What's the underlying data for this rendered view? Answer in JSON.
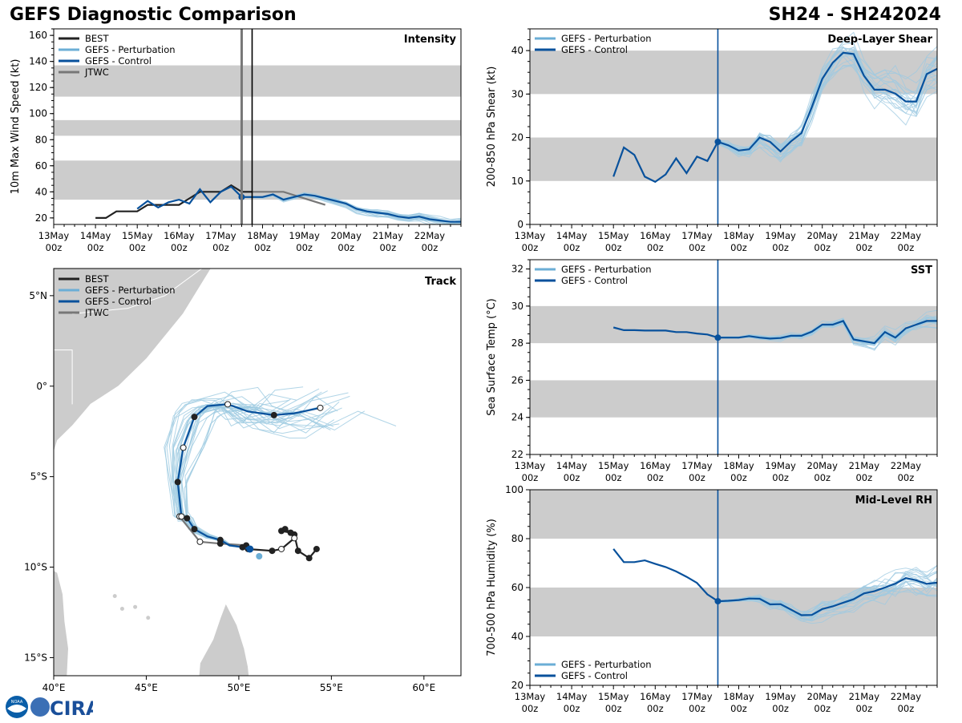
{
  "header": {
    "title": "GEFS Diagnostic Comparison",
    "storm_id": "SH24 - SH242024"
  },
  "logo": {
    "text": "CIRA",
    "seal_text": "NOAA"
  },
  "colors": {
    "best": "#222222",
    "perturbation": "#9ecae1",
    "perturbation_legend": "#6baed6",
    "control": "#08519c",
    "jtwc": "#777777",
    "band": "#cccccc",
    "land": "#cccccc"
  },
  "time_axis": {
    "ticks": [
      "13May\n00z",
      "14May\n00z",
      "15May\n00z",
      "16May\n00z",
      "17May\n00z",
      "18May\n00z",
      "19May\n00z",
      "20May\n00z",
      "21May\n00z",
      "22May\n00z"
    ],
    "range_days": [
      0,
      9.75
    ],
    "init_day": 4.5
  },
  "legends": {
    "best": "BEST",
    "perturbation": "GEFS - Perturbation",
    "control": "GEFS - Control",
    "jtwc": "JTWC"
  },
  "chart_data": [
    {
      "id": "intensity",
      "type": "line",
      "title": "Intensity",
      "ylabel": "10m Max Wind Speed (kt)",
      "ylim": [
        15,
        165
      ],
      "yticks": [
        20,
        40,
        60,
        80,
        100,
        120,
        140,
        160
      ],
      "bands": [
        [
          34,
          64
        ],
        [
          83,
          95
        ],
        [
          113,
          137
        ]
      ],
      "init_lines": [
        4.5,
        4.75
      ],
      "series": [
        {
          "name": "BEST",
          "color": "best",
          "x": [
            1,
            1.25,
            1.5,
            1.75,
            2,
            2.25,
            2.5,
            2.75,
            3,
            3.25,
            3.5,
            3.75,
            4,
            4.25,
            4.5,
            4.75
          ],
          "y": [
            20,
            20,
            25,
            25,
            25,
            30,
            30,
            30,
            30,
            35,
            40,
            40,
            40,
            45,
            40,
            40
          ]
        },
        {
          "name": "GEFS - Control",
          "color": "control",
          "x": [
            2,
            2.25,
            2.5,
            2.75,
            3,
            3.25,
            3.5,
            3.75,
            4,
            4.25,
            4.5,
            4.75,
            5,
            5.25,
            5.5,
            5.75,
            6,
            6.25,
            6.5,
            6.75,
            7,
            7.25,
            7.5,
            7.75,
            8,
            8.25,
            8.5,
            8.75,
            9,
            9.25,
            9.5,
            9.75
          ],
          "y": [
            27,
            33,
            28,
            32,
            34,
            31,
            42,
            32,
            40,
            44,
            36,
            36,
            36,
            38,
            34,
            36,
            38,
            37,
            35,
            33,
            31,
            27,
            25,
            24,
            23,
            21,
            20,
            21,
            19,
            18,
            17,
            17
          ]
        },
        {
          "name": "JTWC",
          "color": "jtwc",
          "x": [
            4.5,
            5,
            5.5,
            6,
            6.5
          ],
          "y": [
            40,
            40,
            40,
            35,
            30
          ]
        }
      ],
      "ensemble": {
        "count": 20,
        "start": 4.5,
        "end": 9.75,
        "start_value": 38,
        "end_value": 17,
        "spread": 6
      }
    },
    {
      "id": "shear",
      "type": "line",
      "title": "Deep-Layer Shear",
      "ylabel": "200-850 hPa Shear (kt)",
      "ylim": [
        0,
        45
      ],
      "yticks": [
        0,
        10,
        20,
        30,
        40
      ],
      "bands": [
        [
          10,
          20
        ],
        [
          30,
          40
        ]
      ],
      "init_lines": [
        4.5
      ],
      "series": [
        {
          "name": "GEFS - Control",
          "color": "control",
          "x": [
            2,
            2.25,
            2.5,
            2.75,
            3,
            3.25,
            3.5,
            3.75,
            4,
            4.25,
            4.5,
            4.75,
            5,
            5.25,
            5.5,
            5.75,
            6,
            6.25,
            6.5,
            6.75,
            7,
            7.25,
            7.5,
            7.75,
            8,
            8.25,
            8.5,
            8.75,
            9,
            9.25,
            9.5,
            9.75
          ],
          "y": [
            11,
            17.7,
            16,
            11,
            9.8,
            11.5,
            15.2,
            11.8,
            15.6,
            14.6,
            19,
            18.2,
            17,
            17.3,
            20,
            19,
            16.8,
            19.1,
            21,
            27,
            33.5,
            37.2,
            39.5,
            39.2,
            34.2,
            31,
            31,
            30.1,
            28.3,
            28.3,
            34.6,
            35.8
          ]
        }
      ],
      "ensemble": {
        "count": 20,
        "start": 4.5,
        "end": 9.75,
        "start_value": 19,
        "end_value": 28,
        "spread": 9
      }
    },
    {
      "id": "sst",
      "type": "line",
      "title": "SST",
      "ylabel": "Sea Surface Temp (°C)",
      "ylim": [
        22,
        32.5
      ],
      "yticks": [
        22,
        24,
        26,
        28,
        30,
        32
      ],
      "bands": [
        [
          24,
          26
        ],
        [
          28,
          30
        ]
      ],
      "init_lines": [
        4.5
      ],
      "series": [
        {
          "name": "GEFS - Control",
          "color": "control",
          "x": [
            2,
            2.25,
            2.5,
            2.75,
            3,
            3.25,
            3.5,
            3.75,
            4,
            4.25,
            4.5,
            4.75,
            5,
            5.25,
            5.5,
            5.75,
            6,
            6.25,
            6.5,
            6.75,
            7,
            7.25,
            7.5,
            7.75,
            8,
            8.25,
            8.5,
            8.75,
            9,
            9.25,
            9.5,
            9.75
          ],
          "y": [
            28.85,
            28.7,
            28.7,
            28.68,
            28.68,
            28.68,
            28.6,
            28.6,
            28.52,
            28.47,
            28.3,
            28.3,
            28.3,
            28.38,
            28.3,
            28.25,
            28.28,
            28.4,
            28.4,
            28.62,
            29.0,
            29.0,
            29.2,
            28.2,
            28.1,
            28.0,
            28.6,
            28.3,
            28.8,
            29.0,
            29.2,
            29.2
          ]
        }
      ],
      "ensemble": {
        "count": 20,
        "start": 4.5,
        "end": 9.75,
        "start_value": 28.3,
        "end_value": 29.0,
        "spread": 0.6
      }
    },
    {
      "id": "rh",
      "type": "line",
      "title": "Mid-Level RH",
      "ylabel": "700-500 hPa Humidity (%)",
      "ylim": [
        20,
        100
      ],
      "yticks": [
        20,
        40,
        60,
        80,
        100
      ],
      "bands": [
        [
          40,
          60
        ],
        [
          80,
          100
        ]
      ],
      "init_lines": [
        4.5
      ],
      "series": [
        {
          "name": "GEFS - Control",
          "color": "control",
          "x": [
            2,
            2.25,
            2.5,
            2.75,
            3,
            3.25,
            3.5,
            3.75,
            4,
            4.25,
            4.5,
            4.75,
            5,
            5.25,
            5.5,
            5.75,
            6,
            6.25,
            6.5,
            6.75,
            7,
            7.25,
            7.5,
            7.75,
            8,
            8.25,
            8.5,
            8.75,
            9,
            9.25,
            9.5,
            9.75
          ],
          "y": [
            75.8,
            70.4,
            70.4,
            71.1,
            69.7,
            68.4,
            66.6,
            64.4,
            61.9,
            57.2,
            54.4,
            54.6,
            54.9,
            55.5,
            55.4,
            53.1,
            53.2,
            51,
            48.7,
            48.8,
            51.2,
            52.3,
            53.8,
            55.2,
            57.6,
            58.5,
            60,
            61.6,
            63.9,
            63,
            61.5,
            62
          ]
        }
      ],
      "ensemble": {
        "count": 20,
        "start": 4.5,
        "end": 9.75,
        "start_value": 54,
        "end_value": 60,
        "spread": 9
      }
    },
    {
      "id": "track",
      "type": "scatter",
      "title": "Track",
      "lon_range": [
        40,
        62
      ],
      "lat_range": [
        -16,
        6.5
      ],
      "xticks": [
        {
          "v": 40,
          "label": "40°E"
        },
        {
          "v": 45,
          "label": "45°E"
        },
        {
          "v": 50,
          "label": "50°E"
        },
        {
          "v": 55,
          "label": "55°E"
        },
        {
          "v": 60,
          "label": "60°E"
        }
      ],
      "yticks": [
        {
          "v": 5,
          "label": "5°N"
        },
        {
          "v": 0,
          "label": "0°"
        },
        {
          "v": -5,
          "label": "5°S"
        },
        {
          "v": -10,
          "label": "10°S"
        },
        {
          "v": -15,
          "label": "15°S"
        }
      ],
      "series": [
        {
          "name": "BEST",
          "color": "best",
          "lon": [
            54.2,
            53.8,
            53.2,
            53.0,
            52.5,
            52.3,
            52.8,
            53.0,
            52.3,
            51.8,
            50.5
          ],
          "lat": [
            -9.0,
            -9.5,
            -9.1,
            -8.2,
            -7.9,
            -8.0,
            -8.1,
            -8.4,
            -9.0,
            -9.1,
            -9.0
          ],
          "hollow": [
            false,
            false,
            false,
            false,
            false,
            false,
            false,
            true,
            true,
            false,
            false
          ]
        },
        {
          "name": "GEFS - Control",
          "color": "control",
          "lon": [
            50.6,
            50.2,
            49.5,
            49.0,
            48.3,
            47.6,
            47.2,
            46.9,
            46.7,
            47.0,
            47.6,
            48.3,
            49.4,
            50.5,
            51.9,
            53.0,
            54.4
          ],
          "lat": [
            -9.0,
            -8.9,
            -8.8,
            -8.5,
            -8.3,
            -7.9,
            -7.3,
            -7.2,
            -5.3,
            -3.4,
            -1.7,
            -1.1,
            -1.0,
            -1.4,
            -1.6,
            -1.5,
            -1.2
          ],
          "hollow": [
            false,
            false,
            false,
            false,
            false,
            false,
            false,
            true,
            false,
            true,
            false,
            false,
            true,
            false,
            false,
            false,
            true
          ]
        },
        {
          "name": "JTWC",
          "color": "jtwc",
          "lon": [
            50.4,
            49.0,
            47.9,
            46.8
          ],
          "lat": [
            -8.8,
            -8.7,
            -8.6,
            -7.2
          ],
          "hollow": [
            false,
            false,
            true,
            true
          ]
        }
      ]
    }
  ]
}
